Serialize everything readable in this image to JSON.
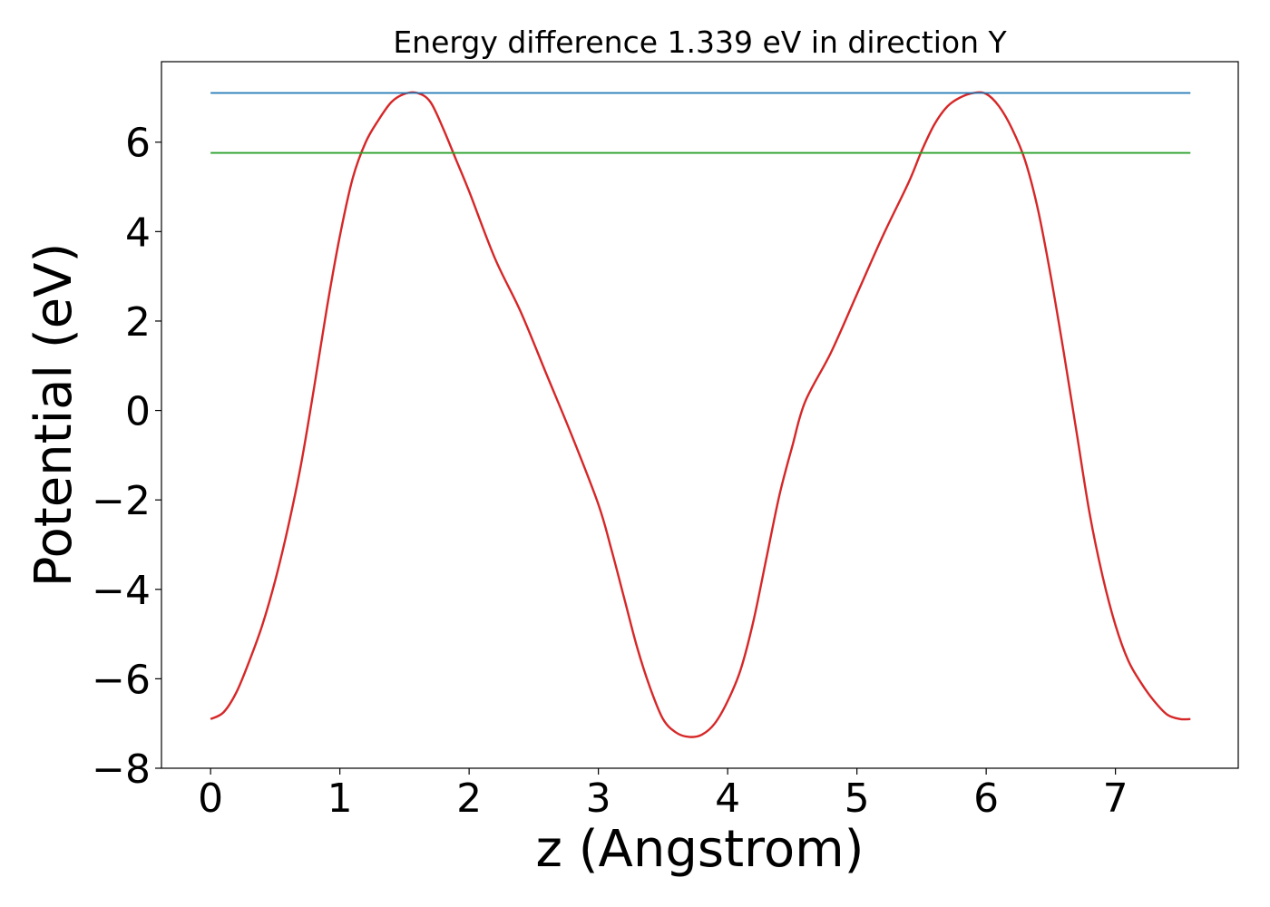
{
  "chart_data": {
    "type": "line",
    "title": "Energy difference 1.339 eV in direction Y",
    "xlabel": "z (Angstrom)",
    "ylabel": "Potential (eV)",
    "xlim": [
      -0.38,
      7.95
    ],
    "ylim": [
      -8,
      7.8
    ],
    "xticks": [
      0,
      1,
      2,
      3,
      4,
      5,
      6,
      7
    ],
    "xtick_labels": [
      "0",
      "1",
      "2",
      "3",
      "4",
      "5",
      "6",
      "7"
    ],
    "yticks": [
      -8,
      -6,
      -4,
      -2,
      0,
      2,
      4,
      6
    ],
    "ytick_labels": [
      "−8",
      "−6",
      "−4",
      "−2",
      "0",
      "2",
      "4",
      "6"
    ],
    "grid": false,
    "series": [
      {
        "kind": "curve",
        "color": "#d62728",
        "x": [
          0.0,
          0.1,
          0.2,
          0.3,
          0.4,
          0.5,
          0.6,
          0.7,
          0.8,
          0.9,
          1.0,
          1.1,
          1.2,
          1.3,
          1.4,
          1.5,
          1.6,
          1.7,
          1.8,
          1.9,
          2.0,
          2.2,
          2.4,
          2.6,
          2.8,
          3.0,
          3.1,
          3.2,
          3.3,
          3.4,
          3.5,
          3.6,
          3.7,
          3.8,
          3.9,
          4.0,
          4.1,
          4.2,
          4.3,
          4.4,
          4.5,
          4.6,
          4.8,
          5.0,
          5.2,
          5.4,
          5.5,
          5.6,
          5.7,
          5.8,
          5.9,
          6.0,
          6.1,
          6.2,
          6.3,
          6.4,
          6.5,
          6.6,
          6.7,
          6.8,
          6.9,
          7.0,
          7.1,
          7.2,
          7.3,
          7.4,
          7.5,
          7.58
        ],
        "y": [
          -6.9,
          -6.75,
          -6.3,
          -5.6,
          -4.8,
          -3.8,
          -2.6,
          -1.2,
          0.5,
          2.3,
          3.9,
          5.2,
          6.0,
          6.5,
          6.9,
          7.08,
          7.1,
          6.9,
          6.3,
          5.6,
          4.9,
          3.4,
          2.2,
          0.8,
          -0.6,
          -2.1,
          -3.1,
          -4.2,
          -5.3,
          -6.2,
          -6.9,
          -7.2,
          -7.3,
          -7.25,
          -7.0,
          -6.5,
          -5.8,
          -4.7,
          -3.3,
          -1.9,
          -0.8,
          0.2,
          1.3,
          2.6,
          3.9,
          5.1,
          5.8,
          6.4,
          6.8,
          7.0,
          7.1,
          7.08,
          6.8,
          6.3,
          5.6,
          4.5,
          3.0,
          1.3,
          -0.5,
          -2.3,
          -3.7,
          -4.8,
          -5.6,
          -6.1,
          -6.5,
          -6.8,
          -6.9,
          -6.9
        ]
      },
      {
        "kind": "hline",
        "color": "#1f77b4",
        "x": [
          0.0,
          7.58
        ],
        "y": [
          7.1,
          7.1
        ]
      },
      {
        "kind": "hline",
        "color": "#2ca02c",
        "x": [
          0.0,
          7.58
        ],
        "y": [
          5.76,
          5.76
        ]
      }
    ]
  }
}
